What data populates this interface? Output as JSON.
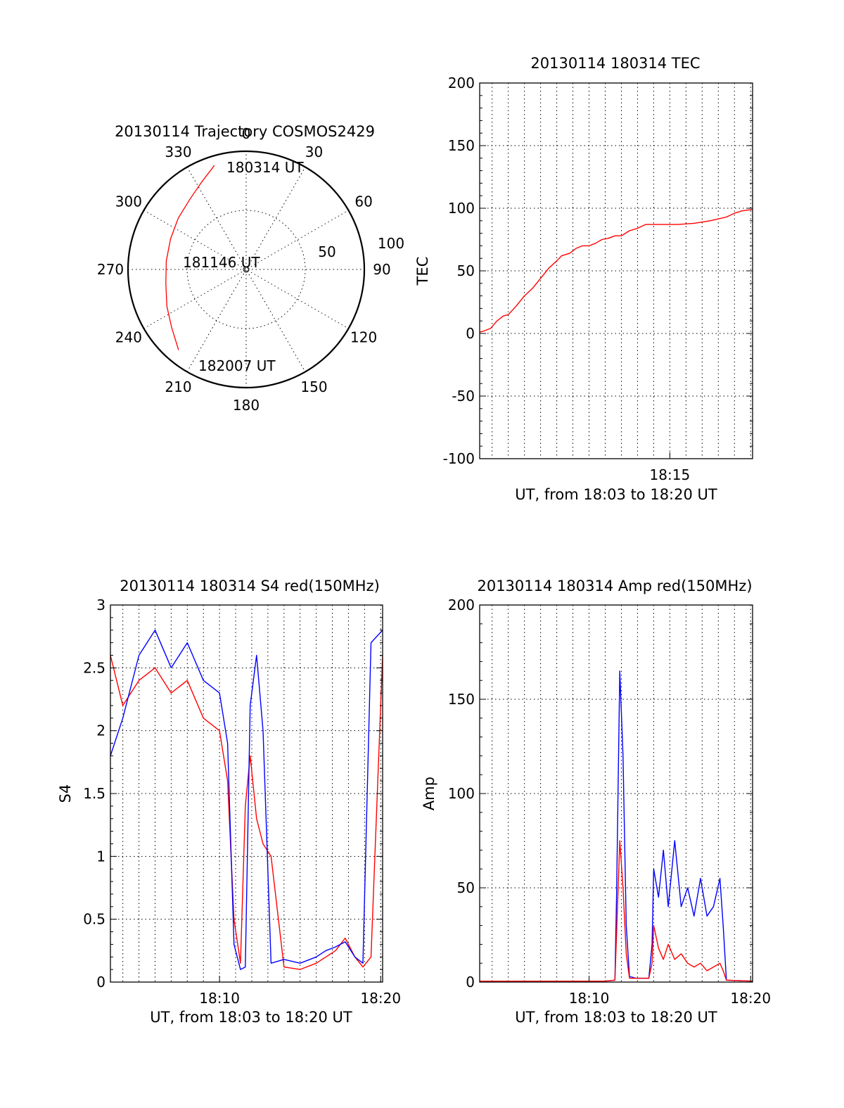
{
  "chart_data": [
    {
      "id": "trajectory",
      "type": "polar",
      "title": "20130114 Trajectory COSMOS2429",
      "azimuth_labels": [
        "0",
        "30",
        "60",
        "90",
        "120",
        "150",
        "180",
        "210",
        "240",
        "270",
        "300",
        "330"
      ],
      "azimuth_values": [
        0,
        30,
        60,
        90,
        120,
        150,
        180,
        210,
        240,
        270,
        300,
        330
      ],
      "radial_labels": [
        "50",
        "100"
      ],
      "radial_values": [
        50,
        100
      ],
      "radial_max": 100,
      "annotations": [
        "180314 UT",
        "181146 UT",
        "182007 UT"
      ],
      "series": [
        {
          "color": "#ff0000",
          "points": [
            {
              "azimuth": 343,
              "radius": 92
            },
            {
              "azimuth": 333,
              "radius": 83
            },
            {
              "azimuth": 321,
              "radius": 76
            },
            {
              "azimuth": 307,
              "radius": 72
            },
            {
              "azimuth": 292,
              "radius": 69
            },
            {
              "azimuth": 276,
              "radius": 68
            },
            {
              "azimuth": 260,
              "radius": 69
            },
            {
              "azimuth": 245,
              "radius": 74
            },
            {
              "azimuth": 232,
              "radius": 80
            },
            {
              "azimuth": 220,
              "radius": 89
            }
          ]
        }
      ]
    },
    {
      "id": "tec",
      "type": "line",
      "title": "20130114 180314 TEC",
      "xlabel": "UT, from 18:03 to 18:20 UT",
      "ylabel": "TEC",
      "xlim": [
        3.23,
        20.12
      ],
      "ylim": [
        -100,
        200
      ],
      "yticks": [
        "200",
        "150",
        "100",
        "50",
        "0",
        "-50",
        "-100"
      ],
      "ytick_values": [
        200,
        150,
        100,
        50,
        0,
        -50,
        -100
      ],
      "xticks": [
        "18:15"
      ],
      "xtick_values": [
        15
      ],
      "x_minor_grid": [
        4,
        5,
        6,
        7,
        8,
        9,
        10,
        11,
        12,
        13,
        14,
        15,
        16,
        17,
        18,
        19,
        20
      ],
      "series": [
        {
          "color": "#ff0000",
          "x": [
            3.23,
            3.5,
            3.9,
            4.3,
            4.7,
            5.0,
            5.5,
            6.0,
            6.5,
            7.0,
            7.5,
            8.0,
            8.3,
            8.8,
            9.2,
            9.6,
            10.0,
            10.4,
            10.8,
            11.2,
            11.6,
            12.0,
            12.5,
            13.0,
            13.5,
            13.6,
            14.5,
            15.5,
            16.5,
            17.5,
            18.5,
            19.0,
            19.5,
            20.12
          ],
          "y": [
            1,
            2,
            4,
            10,
            14,
            15,
            22,
            30,
            36,
            44,
            52,
            58,
            62,
            64,
            68,
            70,
            70,
            72,
            75,
            76,
            78,
            78,
            82,
            84,
            87,
            87,
            87,
            87,
            88,
            90,
            93,
            96,
            98,
            99
          ]
        }
      ]
    },
    {
      "id": "s4",
      "type": "line",
      "title": "20130114 180314 S4 red(150MHz)",
      "xlabel": "UT, from 18:03 to 18:20 UT",
      "ylabel": "S4",
      "xlim": [
        3.23,
        20.12
      ],
      "ylim": [
        0,
        3
      ],
      "yticks": [
        "3",
        "2.5",
        "2",
        "1.5",
        "1",
        "0.5",
        "0"
      ],
      "ytick_values": [
        3,
        2.5,
        2,
        1.5,
        1,
        0.5,
        0
      ],
      "xticks": [
        "18:10",
        "18:20"
      ],
      "xtick_values": [
        10,
        20
      ],
      "x_minor_grid": [
        4,
        5,
        6,
        7,
        8,
        9,
        10,
        11,
        12,
        13,
        14,
        15,
        16,
        17,
        18,
        19,
        20
      ],
      "series": [
        {
          "color": "#ff0000",
          "x": [
            3.23,
            4.0,
            5.0,
            6.0,
            7.0,
            8.0,
            9.0,
            10.0,
            10.5,
            10.9,
            11.3,
            11.6,
            11.9,
            12.3,
            12.7,
            13.2,
            14.0,
            15.0,
            16.0,
            16.6,
            17.2,
            17.8,
            18.4,
            18.9,
            19.4,
            20.12
          ],
          "y": [
            2.6,
            2.2,
            2.4,
            2.5,
            2.3,
            2.4,
            2.1,
            2.0,
            1.6,
            0.5,
            0.15,
            1.4,
            1.8,
            1.3,
            1.1,
            1.0,
            0.12,
            0.1,
            0.15,
            0.2,
            0.25,
            0.35,
            0.2,
            0.12,
            0.2,
            2.6
          ]
        },
        {
          "color": "#0000ff",
          "x": [
            3.23,
            4.0,
            5.0,
            6.0,
            7.0,
            8.0,
            9.0,
            10.0,
            10.5,
            10.9,
            11.3,
            11.6,
            11.9,
            12.3,
            12.7,
            13.2,
            14.0,
            15.0,
            16.0,
            16.6,
            17.2,
            17.8,
            18.4,
            18.9,
            19.4,
            20.12
          ],
          "y": [
            1.8,
            2.1,
            2.6,
            2.8,
            2.5,
            2.7,
            2.4,
            2.3,
            1.9,
            0.3,
            0.1,
            0.12,
            2.2,
            2.6,
            2.0,
            0.15,
            0.18,
            0.15,
            0.2,
            0.25,
            0.28,
            0.32,
            0.2,
            0.15,
            2.7,
            2.8
          ]
        }
      ]
    },
    {
      "id": "amp",
      "type": "line",
      "title": "20130114 180314 Amp red(150MHz)",
      "xlabel": "UT, from 18:03 to 18:20 UT",
      "ylabel": "Amp",
      "xlim": [
        3.23,
        20.12
      ],
      "ylim": [
        0,
        200
      ],
      "yticks": [
        "200",
        "150",
        "100",
        "50",
        "0"
      ],
      "ytick_values": [
        200,
        150,
        100,
        50,
        0
      ],
      "xticks": [
        "18:10",
        "18:20"
      ],
      "xtick_values": [
        10,
        20
      ],
      "x_minor_grid": [
        4,
        5,
        6,
        7,
        8,
        9,
        10,
        11,
        12,
        13,
        14,
        15,
        16,
        17,
        18,
        19,
        20
      ],
      "series": [
        {
          "color": "#0000ff",
          "x": [
            3.23,
            5.0,
            7.0,
            9.0,
            11.0,
            11.6,
            11.7,
            11.9,
            12.1,
            12.3,
            12.5,
            12.9,
            13.3,
            13.7,
            13.9,
            14.0,
            14.3,
            14.6,
            14.9,
            15.3,
            15.7,
            16.1,
            16.5,
            16.9,
            17.3,
            17.7,
            18.1,
            18.3,
            18.5,
            20.12
          ],
          "y": [
            0.5,
            0.5,
            0.5,
            0.5,
            0.5,
            1,
            45,
            165,
            120,
            30,
            3,
            2,
            2,
            2,
            20,
            60,
            45,
            70,
            40,
            75,
            40,
            50,
            35,
            55,
            35,
            40,
            55,
            30,
            1,
            0.5
          ]
        },
        {
          "color": "#ff0000",
          "x": [
            3.23,
            5.0,
            7.0,
            9.0,
            11.0,
            11.6,
            11.7,
            11.9,
            12.1,
            12.3,
            12.5,
            12.9,
            13.3,
            13.7,
            13.9,
            14.0,
            14.3,
            14.6,
            14.9,
            15.3,
            15.7,
            16.1,
            16.5,
            16.9,
            17.3,
            17.7,
            18.1,
            18.3,
            18.5,
            20.12
          ],
          "y": [
            0.5,
            0.5,
            0.5,
            0.5,
            0.5,
            1,
            25,
            75,
            50,
            15,
            2,
            2,
            2,
            2,
            10,
            30,
            18,
            12,
            20,
            12,
            15,
            10,
            8,
            10,
            6,
            8,
            10,
            6,
            1,
            0.5
          ]
        }
      ]
    }
  ]
}
